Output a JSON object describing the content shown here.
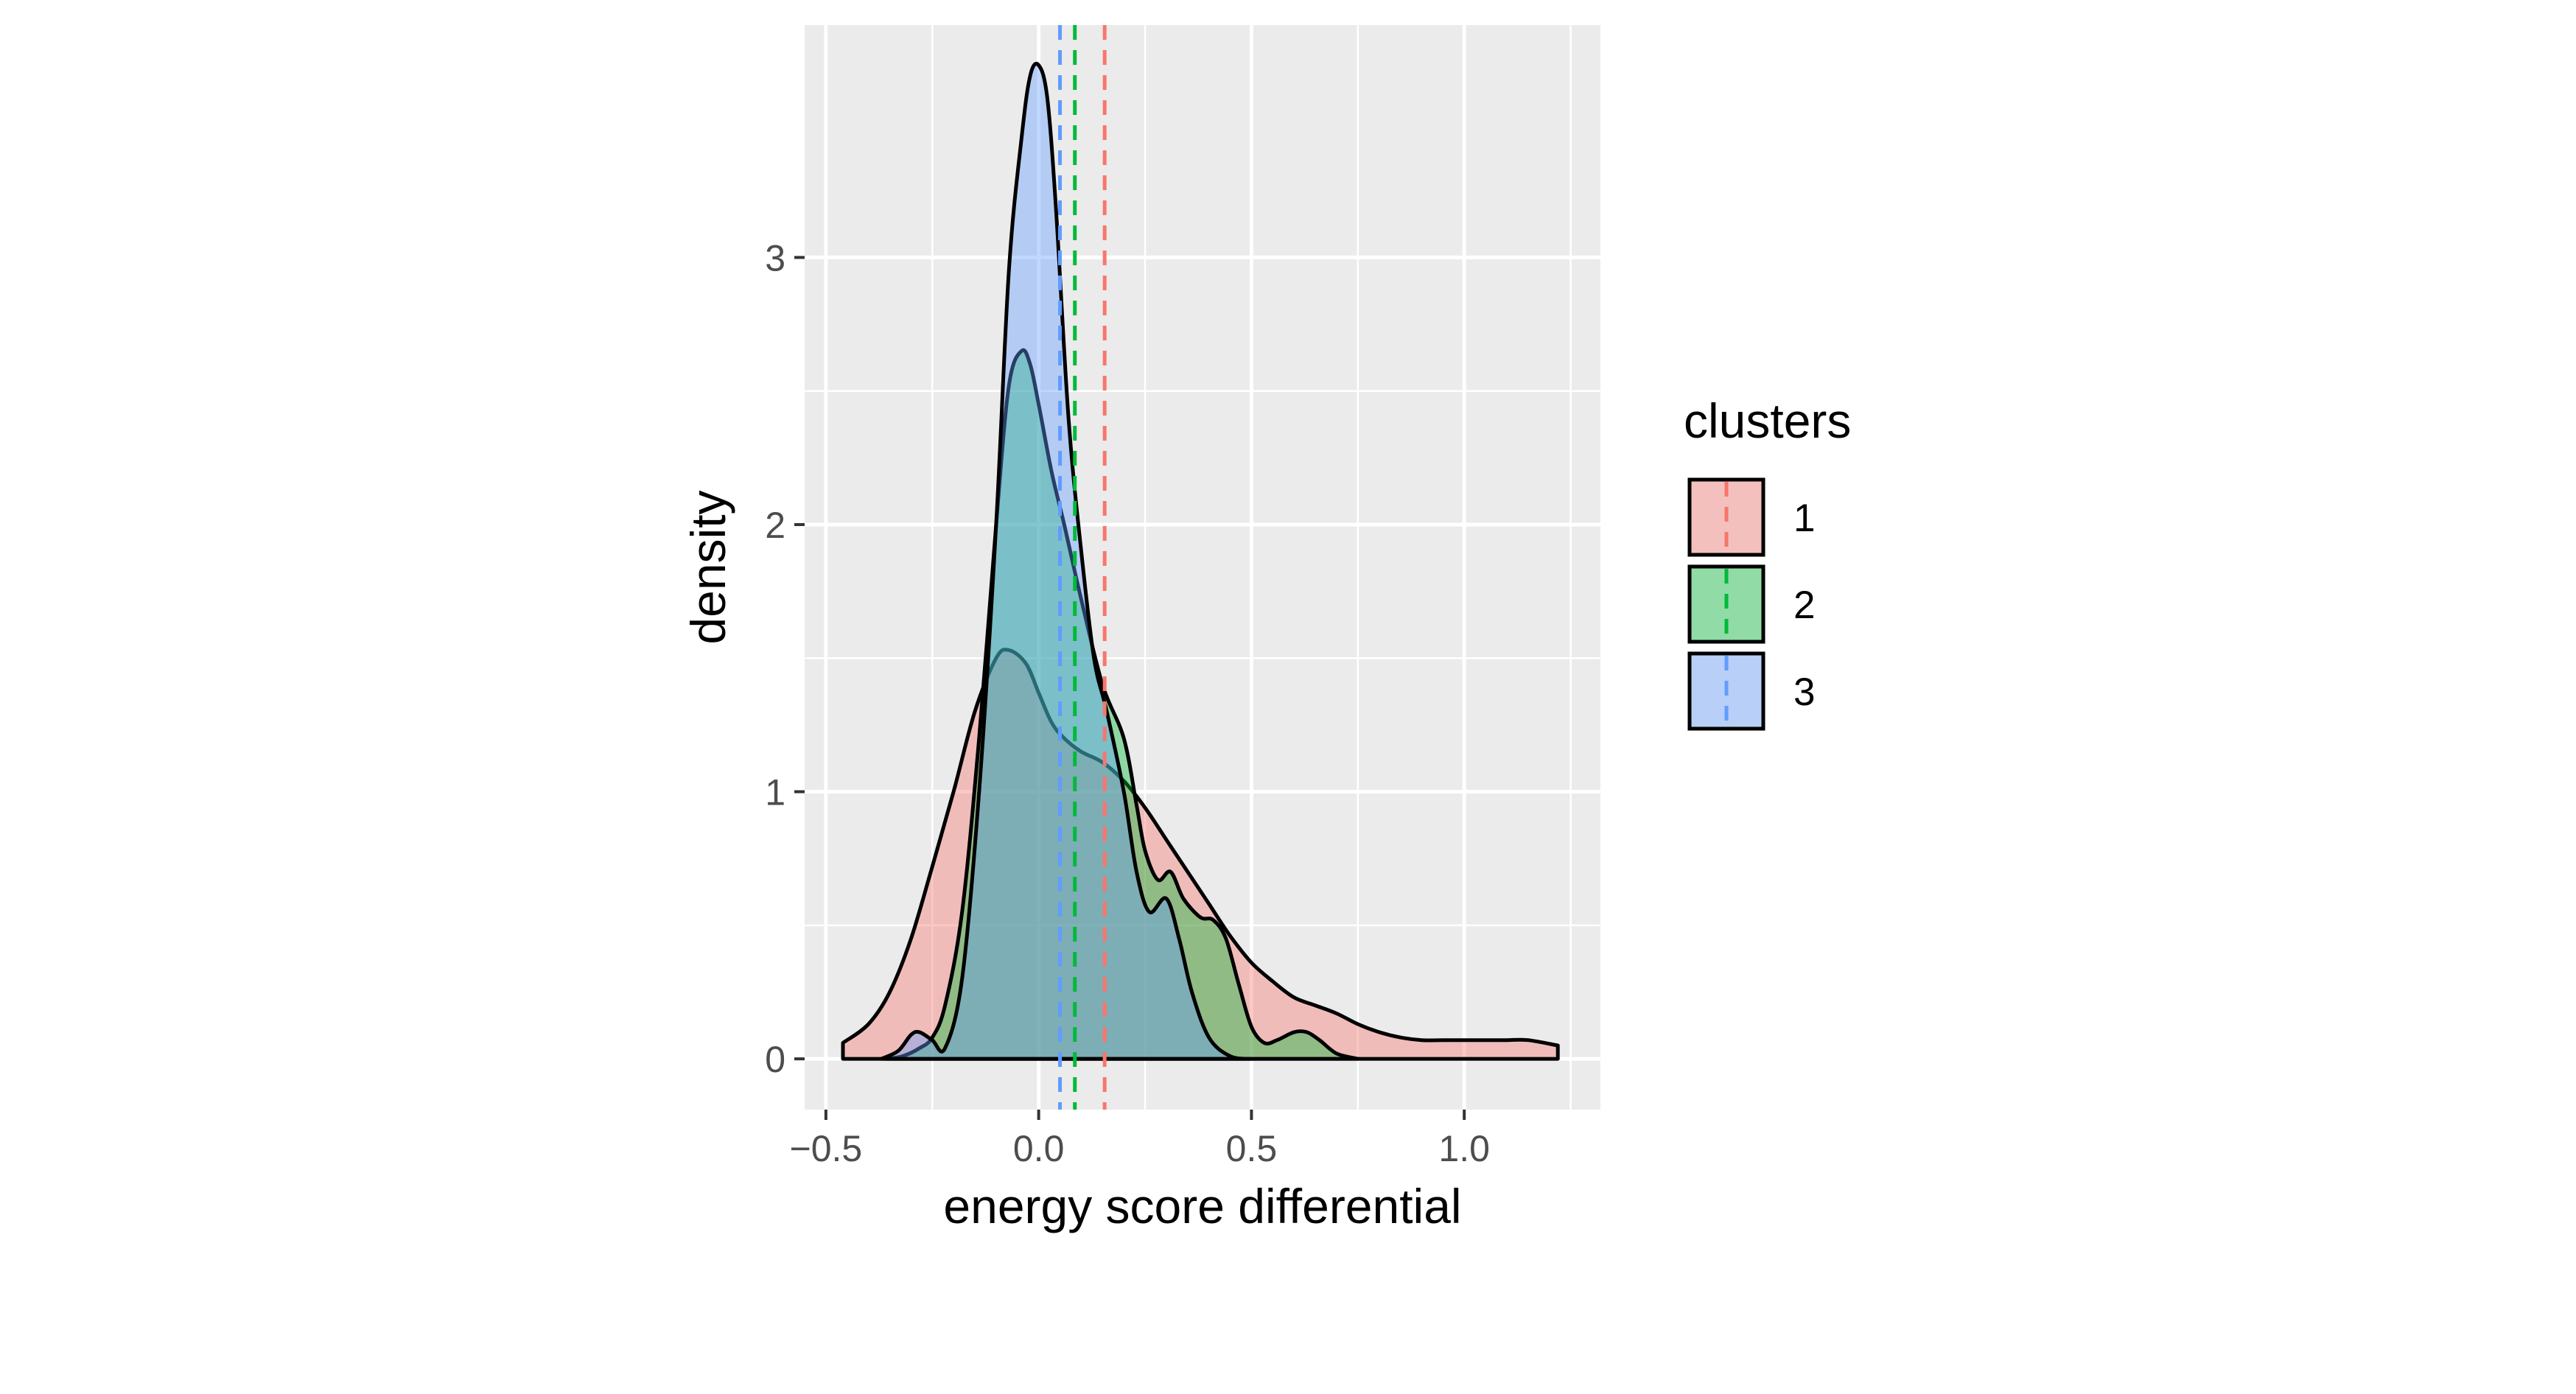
{
  "chart_data": {
    "type": "area",
    "xlabel": "energy score differential",
    "ylabel": "density",
    "xlim": [
      -0.55,
      1.32
    ],
    "ylim": [
      -0.19,
      3.87
    ],
    "x_ticks": [
      -0.5,
      0.0,
      0.5,
      1.0
    ],
    "x_tick_labels": [
      "−0.5",
      "0.0",
      "0.5",
      "1.0"
    ],
    "y_ticks": [
      0,
      1,
      2,
      3
    ],
    "y_tick_labels": [
      "0",
      "1",
      "2",
      "3"
    ],
    "grid": true,
    "legend": {
      "title": "clusters",
      "position": "right"
    },
    "series": [
      {
        "name": "1",
        "fill": "#F8766D",
        "line": "#F8766D",
        "mean": 0.155,
        "x": [
          -0.46,
          -0.4,
          -0.35,
          -0.3,
          -0.25,
          -0.2,
          -0.15,
          -0.1,
          -0.07,
          -0.03,
          0.0,
          0.03,
          0.06,
          0.1,
          0.15,
          0.2,
          0.25,
          0.3,
          0.35,
          0.4,
          0.45,
          0.5,
          0.55,
          0.6,
          0.65,
          0.7,
          0.75,
          0.8,
          0.85,
          0.9,
          0.95,
          1.0,
          1.05,
          1.1,
          1.15,
          1.22
        ],
        "y": [
          0.06,
          0.13,
          0.25,
          0.45,
          0.72,
          1.0,
          1.3,
          1.5,
          1.53,
          1.48,
          1.37,
          1.26,
          1.2,
          1.15,
          1.11,
          1.04,
          0.94,
          0.82,
          0.7,
          0.58,
          0.46,
          0.36,
          0.29,
          0.23,
          0.2,
          0.17,
          0.13,
          0.1,
          0.08,
          0.07,
          0.07,
          0.07,
          0.07,
          0.07,
          0.07,
          0.05
        ]
      },
      {
        "name": "2",
        "fill": "#00BA38",
        "line": "#00BA38",
        "mean": 0.085,
        "x": [
          -0.36,
          -0.32,
          -0.28,
          -0.25,
          -0.22,
          -0.18,
          -0.14,
          -0.1,
          -0.07,
          -0.04,
          -0.02,
          0.0,
          0.03,
          0.06,
          0.1,
          0.15,
          0.2,
          0.23,
          0.25,
          0.28,
          0.31,
          0.34,
          0.38,
          0.41,
          0.44,
          0.47,
          0.5,
          0.53,
          0.56,
          0.6,
          0.63,
          0.66,
          0.7,
          0.75
        ],
        "y": [
          0.0,
          0.01,
          0.04,
          0.08,
          0.2,
          0.55,
          1.2,
          2.0,
          2.52,
          2.65,
          2.6,
          2.45,
          2.2,
          2.0,
          1.72,
          1.4,
          1.2,
          0.95,
          0.78,
          0.67,
          0.7,
          0.6,
          0.53,
          0.52,
          0.45,
          0.28,
          0.12,
          0.06,
          0.07,
          0.1,
          0.1,
          0.07,
          0.02,
          0.0
        ]
      },
      {
        "name": "3",
        "fill": "#619CFF",
        "line": "#619CFF",
        "mean": 0.05,
        "x": [
          -0.37,
          -0.33,
          -0.3,
          -0.28,
          -0.25,
          -0.22,
          -0.18,
          -0.14,
          -0.1,
          -0.07,
          -0.04,
          -0.02,
          0.0,
          0.02,
          0.04,
          0.07,
          0.1,
          0.13,
          0.16,
          0.2,
          0.23,
          0.26,
          0.3,
          0.33,
          0.36,
          0.4,
          0.45,
          0.5
        ],
        "y": [
          0.0,
          0.03,
          0.09,
          0.1,
          0.07,
          0.04,
          0.3,
          1.0,
          2.0,
          2.95,
          3.45,
          3.68,
          3.72,
          3.6,
          3.2,
          2.4,
          1.9,
          1.5,
          1.3,
          1.0,
          0.7,
          0.55,
          0.6,
          0.45,
          0.25,
          0.08,
          0.01,
          0.0
        ]
      }
    ]
  }
}
